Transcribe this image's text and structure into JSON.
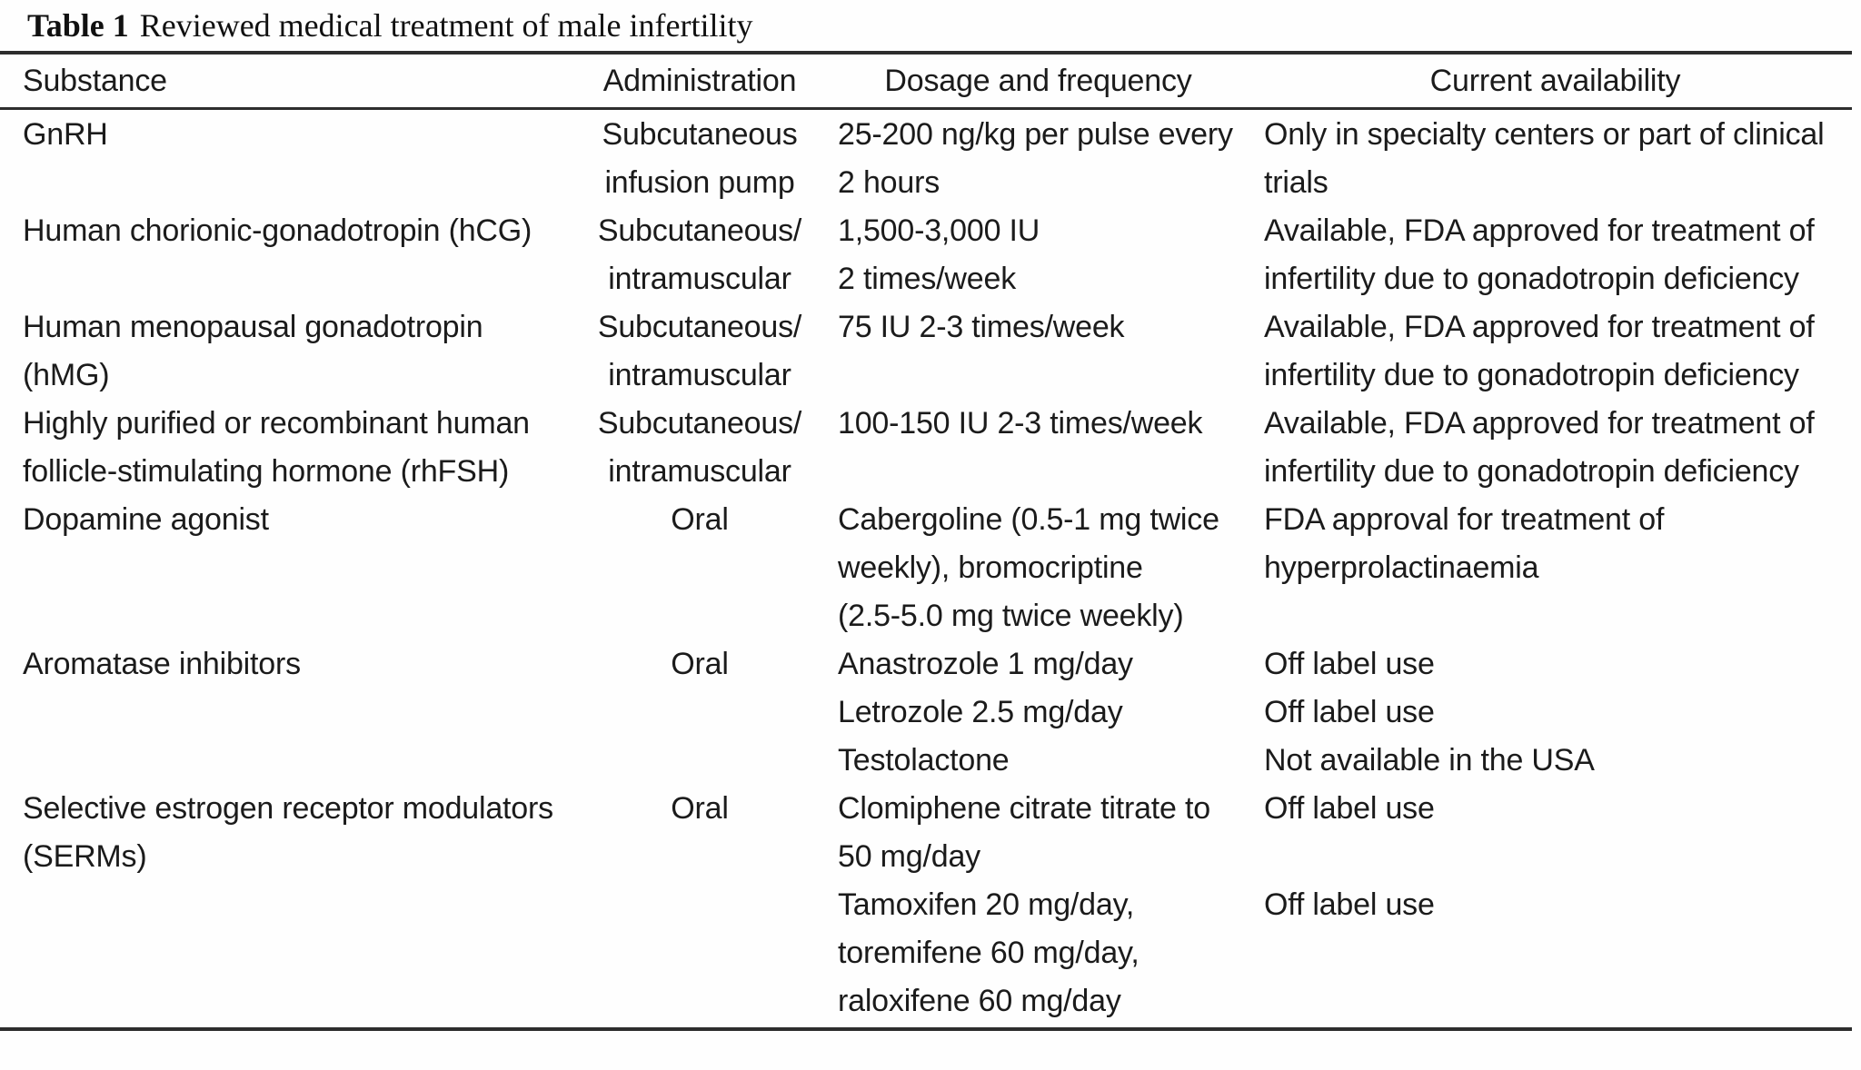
{
  "title": {
    "label": "Table 1",
    "text": "Reviewed medical treatment of male infertility"
  },
  "colors": {
    "background": "#fefefe",
    "text": "#1b1b1b",
    "rule": "#2d2d2d"
  },
  "table": {
    "columns": [
      "Substance",
      "Administration",
      "Dosage and frequency",
      "Current availability"
    ],
    "rows": [
      {
        "substance": [
          "GnRH"
        ],
        "administration": [
          "Subcutaneous",
          "infusion pump"
        ],
        "dosage": [
          "25-200 ng/kg per pulse every",
          "2 hours"
        ],
        "availability": [
          "Only in specialty centers or part of clinical",
          "trials"
        ]
      },
      {
        "substance": [
          "Human chorionic-gonadotropin (hCG)"
        ],
        "administration": [
          "Subcutaneous/",
          "intramuscular"
        ],
        "dosage": [
          "1,500-3,000 IU",
          "2 times/week"
        ],
        "availability": [
          "Available, FDA approved for treatment of",
          "infertility due to gonadotropin deficiency"
        ]
      },
      {
        "substance": [
          "Human menopausal gonadotropin",
          "(hMG)"
        ],
        "administration": [
          "Subcutaneous/",
          "intramuscular"
        ],
        "dosage": [
          "75 IU 2-3 times/week"
        ],
        "availability": [
          "Available, FDA approved for treatment of",
          "infertility due to gonadotropin deficiency"
        ]
      },
      {
        "substance": [
          "Highly purified or recombinant human",
          "follicle-stimulating hormone (rhFSH)"
        ],
        "administration": [
          "Subcutaneous/",
          "intramuscular"
        ],
        "dosage": [
          "100-150 IU 2-3 times/week"
        ],
        "availability": [
          "Available, FDA approved for treatment of",
          "infertility due to gonadotropin deficiency"
        ]
      },
      {
        "substance": [
          "Dopamine agonist"
        ],
        "administration": [
          "Oral"
        ],
        "dosage": [
          "Cabergoline (0.5-1 mg twice",
          "weekly), bromocriptine",
          "(2.5-5.0 mg twice weekly)"
        ],
        "availability": [
          "FDA approval for treatment of",
          "hyperprolactinaemia"
        ]
      },
      {
        "substance": [
          "Aromatase inhibitors"
        ],
        "administration": [
          "Oral"
        ],
        "dosage": [
          "Anastrozole 1 mg/day",
          "Letrozole 2.5 mg/day",
          "Testolactone"
        ],
        "availability": [
          "Off label use",
          "Off label use",
          "Not available in the USA"
        ]
      },
      {
        "substance": [
          "Selective estrogen receptor modulators",
          "(SERMs)"
        ],
        "administration": [
          "Oral"
        ],
        "dosage": [
          "Clomiphene citrate titrate to",
          "50 mg/day",
          "Tamoxifen 20 mg/day,",
          "toremifene 60 mg/day,",
          "raloxifene 60 mg/day"
        ],
        "availability": [
          "Off label use",
          "",
          "Off label use"
        ]
      }
    ]
  }
}
